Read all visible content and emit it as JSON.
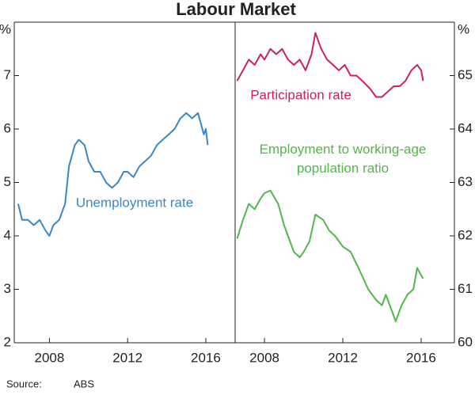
{
  "title": "Labour Market",
  "source_label": "Source:",
  "source": "ABS",
  "chart_data": [
    {
      "type": "line",
      "y_unit": "%",
      "y_axis_side": "left",
      "xlim": [
        2006.2,
        2017.5
      ],
      "xticks": [
        2008,
        2012,
        2016
      ],
      "ylim": [
        2,
        8
      ],
      "yticks": [
        2,
        3,
        4,
        5,
        6,
        7
      ],
      "series": [
        {
          "name": "Unemployment rate",
          "color": "#3a87c8",
          "x": [
            2006.4,
            2006.6,
            2006.9,
            2007.2,
            2007.5,
            2007.8,
            2008.0,
            2008.2,
            2008.5,
            2008.8,
            2009.0,
            2009.3,
            2009.5,
            2009.8,
            2010.0,
            2010.3,
            2010.6,
            2010.9,
            2011.2,
            2011.5,
            2011.8,
            2012.0,
            2012.3,
            2012.6,
            2012.9,
            2013.2,
            2013.5,
            2013.8,
            2014.1,
            2014.4,
            2014.7,
            2015.0,
            2015.3,
            2015.6,
            2015.9,
            2016.0,
            2016.1
          ],
          "values": [
            4.6,
            4.3,
            4.3,
            4.2,
            4.3,
            4.1,
            4.0,
            4.2,
            4.3,
            4.6,
            5.3,
            5.7,
            5.8,
            5.7,
            5.4,
            5.2,
            5.2,
            5.0,
            4.9,
            5.0,
            5.2,
            5.2,
            5.1,
            5.3,
            5.4,
            5.5,
            5.7,
            5.8,
            5.9,
            6.0,
            6.2,
            6.3,
            6.2,
            6.3,
            5.9,
            6.0,
            5.7
          ]
        }
      ]
    },
    {
      "type": "line",
      "y_unit": "%",
      "y_axis_side": "right",
      "xlim": [
        2006.5,
        2017.7
      ],
      "xticks": [
        2008,
        2012,
        2016
      ],
      "ylim": [
        60,
        66
      ],
      "yticks": [
        60,
        61,
        62,
        63,
        64,
        65
      ],
      "series": [
        {
          "name": "Participation rate",
          "color": "#d01e5f",
          "x": [
            2006.6,
            2006.9,
            2007.2,
            2007.5,
            2007.8,
            2008.0,
            2008.3,
            2008.6,
            2008.9,
            2009.2,
            2009.5,
            2009.8,
            2010.1,
            2010.4,
            2010.6,
            2010.9,
            2011.2,
            2011.5,
            2011.8,
            2012.1,
            2012.4,
            2012.7,
            2013.0,
            2013.4,
            2013.7,
            2014.0,
            2014.3,
            2014.6,
            2014.9,
            2015.2,
            2015.5,
            2015.8,
            2016.0,
            2016.1
          ],
          "values": [
            64.9,
            65.1,
            65.3,
            65.2,
            65.4,
            65.3,
            65.5,
            65.4,
            65.5,
            65.3,
            65.2,
            65.3,
            65.1,
            65.4,
            65.8,
            65.5,
            65.3,
            65.2,
            65.1,
            65.2,
            65.0,
            65.0,
            64.9,
            64.75,
            64.6,
            64.6,
            64.7,
            64.8,
            64.8,
            64.9,
            65.1,
            65.2,
            65.1,
            64.9
          ]
        },
        {
          "name": "Employment to working-age population ratio",
          "color": "#4fb848",
          "x": [
            2006.6,
            2006.9,
            2007.2,
            2007.5,
            2007.8,
            2008.0,
            2008.3,
            2008.7,
            2009.0,
            2009.2,
            2009.5,
            2009.8,
            2010.0,
            2010.3,
            2010.6,
            2011.0,
            2011.3,
            2011.6,
            2012.0,
            2012.4,
            2012.8,
            2013.3,
            2013.7,
            2014.0,
            2014.2,
            2014.5,
            2014.7,
            2015.0,
            2015.3,
            2015.6,
            2015.8,
            2016.1
          ],
          "values": [
            61.95,
            62.3,
            62.6,
            62.5,
            62.7,
            62.8,
            62.85,
            62.6,
            62.2,
            62.0,
            61.7,
            61.6,
            61.7,
            61.9,
            62.4,
            62.3,
            62.1,
            62.0,
            61.8,
            61.7,
            61.4,
            61.0,
            60.8,
            60.7,
            60.9,
            60.6,
            60.4,
            60.7,
            60.9,
            61.0,
            61.4,
            61.2
          ]
        }
      ]
    }
  ]
}
